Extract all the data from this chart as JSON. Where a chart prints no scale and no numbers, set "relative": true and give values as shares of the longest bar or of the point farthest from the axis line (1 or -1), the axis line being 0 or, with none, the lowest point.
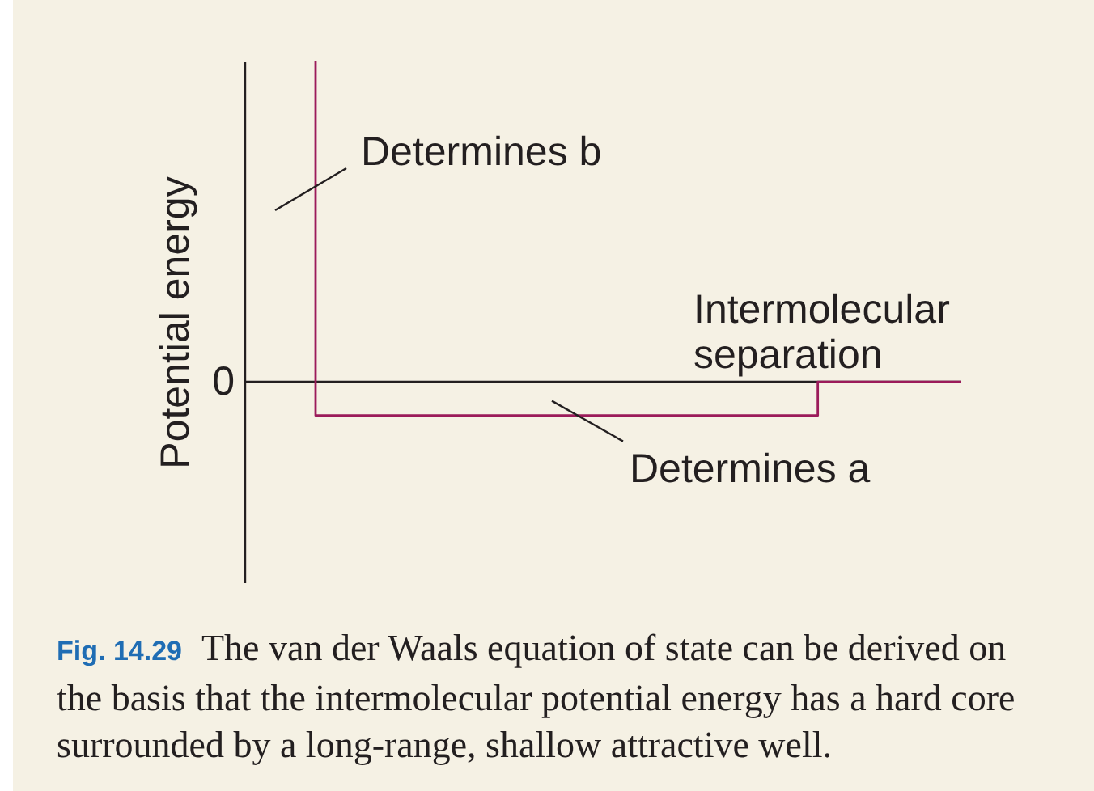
{
  "chart_data": {
    "type": "step",
    "relative": true,
    "xlabel": "Intermolecular separation",
    "ylabel": "Potential energy",
    "categories": [
      null,
      null,
      null,
      null,
      null,
      null,
      null,
      null,
      null,
      null
    ],
    "values": [
      1,
      -0.105,
      -0.105,
      -0.105,
      -0.105,
      -0.105,
      -0.105,
      -0.105,
      0,
      0
    ],
    "color": "#9b1b5a",
    "ref_lines": [
      {
        "axis": "y",
        "value": 0,
        "label": "0"
      }
    ],
    "annotations": [
      "Determines b",
      {
        "text": "Determines a",
        "y": -0.105
      },
      "Fig. 14.29 The van der Waals equation of state can be derived on the basis that the intermolecular potential energy has a hard core surrounded by a long-range, shallow attractive well."
    ]
  }
}
